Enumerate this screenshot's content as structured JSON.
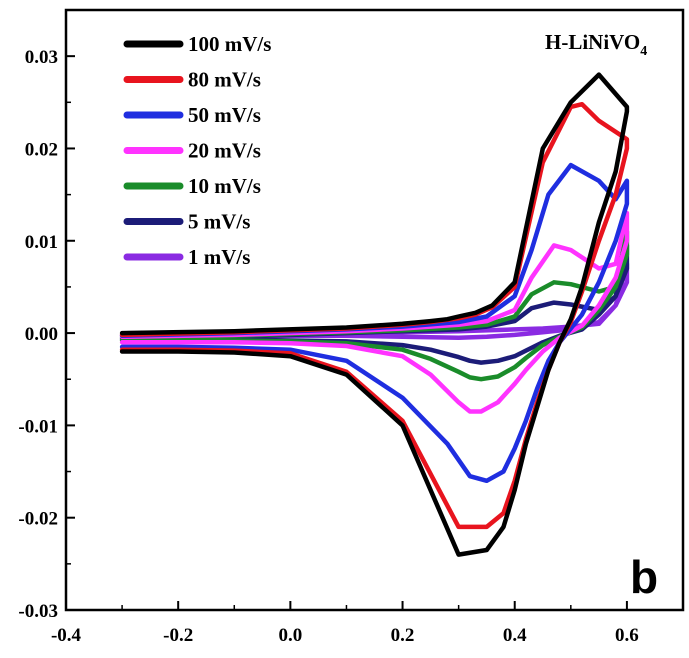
{
  "chart_data": {
    "type": "line",
    "panel_label": "b",
    "corner_label": {
      "text": "H-LiNiVO",
      "subscript": "4"
    },
    "xlabel": "",
    "ylabel": "",
    "xlim": [
      -0.4,
      0.7
    ],
    "ylim": [
      -0.03,
      0.035
    ],
    "x_ticks": [
      {
        "value": -0.4,
        "label": "-0.4"
      },
      {
        "value": -0.2,
        "label": "-0.2"
      },
      {
        "value": 0.0,
        "label": "0.0"
      },
      {
        "value": 0.2,
        "label": "0.2"
      },
      {
        "value": 0.4,
        "label": "0.4"
      },
      {
        "value": 0.6,
        "label": "0.6"
      }
    ],
    "y_ticks": [
      {
        "value": 0.03,
        "label": "0.03"
      },
      {
        "value": 0.02,
        "label": "0.02"
      },
      {
        "value": 0.01,
        "label": "0.01"
      },
      {
        "value": 0.0,
        "label": "0.00"
      },
      {
        "value": -0.01,
        "label": "-0.01"
      },
      {
        "value": -0.02,
        "label": "-0.02"
      },
      {
        "value": -0.03,
        "label": "-0.03"
      }
    ],
    "grid": false,
    "legend_position": "top-left",
    "series": [
      {
        "name": "100 mV/s",
        "color": "#000000",
        "x": [
          -0.3,
          -0.1,
          0.1,
          0.2,
          0.25,
          0.28,
          0.3,
          0.33,
          0.36,
          0.4,
          0.45,
          0.5,
          0.55,
          0.6,
          0.6,
          0.58,
          0.55,
          0.52,
          0.5,
          0.48,
          0.46,
          0.44,
          0.42,
          0.4,
          0.38,
          0.35,
          0.3,
          0.2,
          0.1,
          0.0,
          -0.1,
          -0.2,
          -0.3
        ],
        "y": [
          0.0,
          0.0002,
          0.0006,
          0.001,
          0.0013,
          0.0015,
          0.0018,
          0.0022,
          0.003,
          0.0055,
          0.02,
          0.025,
          0.028,
          0.0245,
          0.024,
          0.0175,
          0.012,
          0.005,
          0.0015,
          -0.001,
          -0.004,
          -0.008,
          -0.012,
          -0.017,
          -0.021,
          -0.0235,
          -0.024,
          -0.01,
          -0.0045,
          -0.0025,
          -0.0021,
          -0.002,
          -0.002
        ]
      },
      {
        "name": "80 mV/s",
        "color": "#e8141e",
        "x": [
          -0.3,
          -0.1,
          0.1,
          0.2,
          0.25,
          0.3,
          0.33,
          0.36,
          0.4,
          0.45,
          0.5,
          0.52,
          0.55,
          0.6,
          0.6,
          0.58,
          0.55,
          0.52,
          0.5,
          0.48,
          0.46,
          0.44,
          0.42,
          0.4,
          0.38,
          0.35,
          0.3,
          0.2,
          0.1,
          0.0,
          -0.1,
          -0.2,
          -0.3
        ],
        "y": [
          -0.0002,
          0.0001,
          0.0005,
          0.0009,
          0.0012,
          0.0016,
          0.002,
          0.0028,
          0.005,
          0.0185,
          0.0245,
          0.0248,
          0.023,
          0.021,
          0.02,
          0.015,
          0.01,
          0.0045,
          0.0012,
          -0.001,
          -0.004,
          -0.0075,
          -0.0115,
          -0.016,
          -0.0195,
          -0.021,
          -0.021,
          -0.0095,
          -0.0042,
          -0.0022,
          -0.0019,
          -0.0018,
          -0.0018
        ]
      },
      {
        "name": "50 mV/s",
        "color": "#1f2ee0",
        "x": [
          -0.3,
          -0.1,
          0.1,
          0.2,
          0.3,
          0.35,
          0.4,
          0.43,
          0.46,
          0.5,
          0.55,
          0.58,
          0.6,
          0.6,
          0.58,
          0.55,
          0.52,
          0.5,
          0.48,
          0.46,
          0.44,
          0.42,
          0.4,
          0.38,
          0.35,
          0.32,
          0.28,
          0.2,
          0.1,
          0.0,
          -0.1,
          -0.2,
          -0.3
        ],
        "y": [
          -0.0003,
          0.0,
          0.0004,
          0.0007,
          0.0012,
          0.0018,
          0.004,
          0.009,
          0.015,
          0.0182,
          0.0165,
          0.0145,
          0.0165,
          0.014,
          0.01,
          0.0055,
          0.002,
          0.0005,
          -0.001,
          -0.003,
          -0.006,
          -0.0095,
          -0.0125,
          -0.015,
          -0.016,
          -0.0155,
          -0.012,
          -0.007,
          -0.003,
          -0.0018,
          -0.0016,
          -0.0015,
          -0.0015
        ]
      },
      {
        "name": "20 mV/s",
        "color": "#ff33ff",
        "x": [
          -0.3,
          -0.1,
          0.1,
          0.2,
          0.3,
          0.35,
          0.4,
          0.43,
          0.47,
          0.5,
          0.55,
          0.58,
          0.6,
          0.6,
          0.58,
          0.55,
          0.52,
          0.48,
          0.45,
          0.42,
          0.4,
          0.37,
          0.34,
          0.32,
          0.3,
          0.25,
          0.2,
          0.1,
          0.0,
          -0.1,
          -0.2,
          -0.3
        ],
        "y": [
          -0.0004,
          -0.0002,
          0.0002,
          0.0005,
          0.0009,
          0.0013,
          0.0025,
          0.006,
          0.0095,
          0.009,
          0.007,
          0.0075,
          0.013,
          0.01,
          0.006,
          0.003,
          0.0008,
          -0.0005,
          -0.002,
          -0.004,
          -0.0055,
          -0.0075,
          -0.0085,
          -0.0085,
          -0.0075,
          -0.0045,
          -0.0025,
          -0.0014,
          -0.0011,
          -0.001,
          -0.001,
          -0.001
        ]
      },
      {
        "name": "10 mV/s",
        "color": "#1a8c2a",
        "x": [
          -0.3,
          -0.1,
          0.1,
          0.2,
          0.3,
          0.35,
          0.4,
          0.43,
          0.47,
          0.5,
          0.55,
          0.58,
          0.6,
          0.6,
          0.58,
          0.55,
          0.52,
          0.48,
          0.45,
          0.42,
          0.4,
          0.37,
          0.34,
          0.32,
          0.3,
          0.25,
          0.2,
          0.1,
          0.0,
          -0.1,
          -0.2,
          -0.3
        ],
        "y": [
          -0.0005,
          -0.0003,
          0.0001,
          0.0003,
          0.0006,
          0.0009,
          0.0018,
          0.0042,
          0.0055,
          0.0053,
          0.0045,
          0.005,
          0.011,
          0.0085,
          0.005,
          0.0025,
          0.0006,
          -0.0004,
          -0.0013,
          -0.0027,
          -0.0037,
          -0.0047,
          -0.005,
          -0.0048,
          -0.0042,
          -0.0028,
          -0.0018,
          -0.0011,
          -0.0009,
          -0.0008,
          -0.0008,
          -0.0008
        ]
      },
      {
        "name": "5 mV/s",
        "color": "#1c1c78",
        "x": [
          -0.3,
          -0.1,
          0.1,
          0.2,
          0.3,
          0.35,
          0.4,
          0.43,
          0.47,
          0.5,
          0.55,
          0.58,
          0.6,
          0.6,
          0.58,
          0.55,
          0.52,
          0.48,
          0.45,
          0.42,
          0.4,
          0.37,
          0.34,
          0.32,
          0.3,
          0.25,
          0.2,
          0.1,
          0.0,
          -0.1,
          -0.2,
          -0.3
        ],
        "y": [
          -0.0006,
          -0.0004,
          0.0,
          0.0002,
          0.0004,
          0.0007,
          0.0013,
          0.0027,
          0.0033,
          0.0031,
          0.0025,
          0.004,
          0.0095,
          0.007,
          0.004,
          0.002,
          0.0004,
          -0.0003,
          -0.001,
          -0.0019,
          -0.0025,
          -0.003,
          -0.0032,
          -0.003,
          -0.0026,
          -0.0018,
          -0.0013,
          -0.0009,
          -0.0008,
          -0.0007,
          -0.0007,
          -0.0007
        ]
      },
      {
        "name": "1 mV/s",
        "color": "#8a2be2",
        "x": [
          -0.3,
          -0.1,
          0.1,
          0.2,
          0.3,
          0.4,
          0.45,
          0.5,
          0.55,
          0.58,
          0.6,
          0.6,
          0.58,
          0.55,
          0.5,
          0.45,
          0.4,
          0.35,
          0.3,
          0.2,
          0.1,
          0.0,
          -0.1,
          -0.2,
          -0.3
        ],
        "y": [
          -0.0002,
          -0.0001,
          0.0,
          0.0001,
          0.0002,
          0.0004,
          0.0005,
          0.0007,
          0.001,
          0.003,
          0.0075,
          0.0055,
          0.003,
          0.0012,
          0.0004,
          0.0001,
          -0.0002,
          -0.0004,
          -0.0005,
          -0.0004,
          -0.0003,
          -0.0003,
          -0.0003,
          -0.0003,
          -0.0003
        ]
      }
    ]
  }
}
